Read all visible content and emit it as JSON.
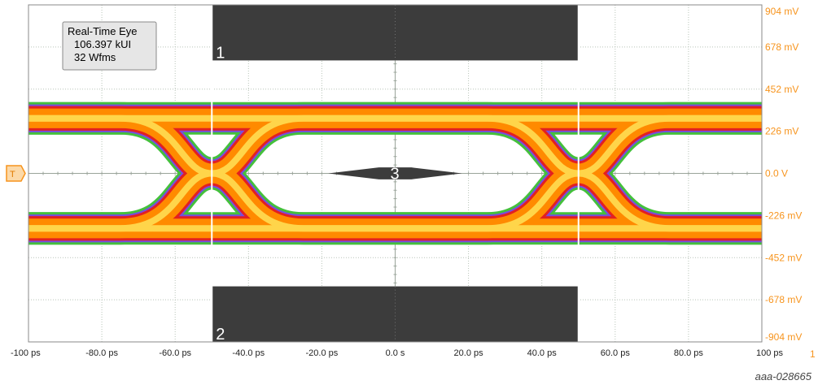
{
  "chart_data": {
    "type": "eye-diagram",
    "info_box": [
      "Real-Time Eye",
      "106.397 kUI",
      "32 Wfms"
    ],
    "xlim": [
      -100,
      100
    ],
    "ylim": [
      -904,
      904
    ],
    "x_unit": "ps",
    "y_unit": "mV",
    "x_ticks": [
      -100,
      -80,
      -60,
      -40,
      -20,
      0,
      20,
      40,
      60,
      80,
      100
    ],
    "x_tick_labels": [
      "-100 ps",
      "-80.0 ps",
      "-60.0 ps",
      "-40.0 ps",
      "-20.0 ps",
      "0.0 s",
      "20.0 ps",
      "40.0 ps",
      "60.0 ps",
      "80.0 ps",
      "100 ps"
    ],
    "y_ticks": [
      904,
      678,
      452,
      226,
      0,
      -226,
      -452,
      -678,
      -904
    ],
    "y_tick_labels": [
      "904 mV",
      "678 mV",
      "452 mV",
      "226 mV",
      "0.0 V",
      "-226 mV",
      "-452 mV",
      "-678 mV",
      "-904 mV"
    ],
    "channel_label": "1",
    "signal_levels_mV": [
      295,
      -295
    ],
    "crossing_times_ps": [
      -50,
      50
    ],
    "crossing_level_mV": 0,
    "rise_half_width_ps": 25,
    "masks": [
      {
        "label": "1",
        "x_range": [
          -50,
          50
        ],
        "y_range": [
          606,
          904
        ]
      },
      {
        "label": "2",
        "x_range": [
          -50,
          50
        ],
        "y_range": [
          -904,
          -606
        ]
      },
      {
        "label": "3",
        "x_range": [
          -16,
          16
        ],
        "y_range": [
          -32,
          32
        ],
        "shape": "hexagon"
      }
    ],
    "grid": true
  },
  "figure_id": "aaa-028665",
  "colors": {
    "plot_bg": "#ffffff",
    "grid": "#b8c4b8",
    "mask": "#3c3c3c",
    "axis_labels_y": "#f7941d",
    "trace_outer": "#44c03c",
    "trace_edge": "#7a4be0",
    "trace_inner": "#e32020",
    "trace_mid": "#ff8a00",
    "trace_core": "#ffd54a"
  },
  "trigger_marker": "T"
}
